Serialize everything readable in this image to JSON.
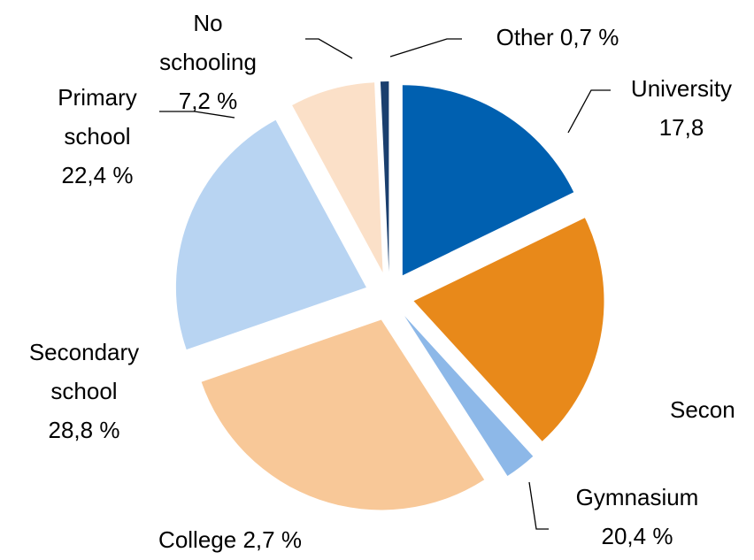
{
  "chart_data": {
    "type": "pie",
    "categories": [
      "University",
      "Gymnasium",
      "College",
      "Secondary school",
      "Primary school",
      "No schooling",
      "Other"
    ],
    "values": [
      17.8,
      20.4,
      2.7,
      28.8,
      22.4,
      7.2,
      0.7
    ],
    "value_labels": [
      "17,8",
      "20,4 %",
      "2,7 %",
      "28,8 %",
      "22,4 %",
      "7,2 %",
      "0,7 %"
    ],
    "colors": [
      "#0060b0",
      "#e8891a",
      "#8db8e8",
      "#f8c898",
      "#b8d4f2",
      "#fbe0c8",
      "#1a3f6e"
    ],
    "annotations": [
      "Secon"
    ]
  }
}
